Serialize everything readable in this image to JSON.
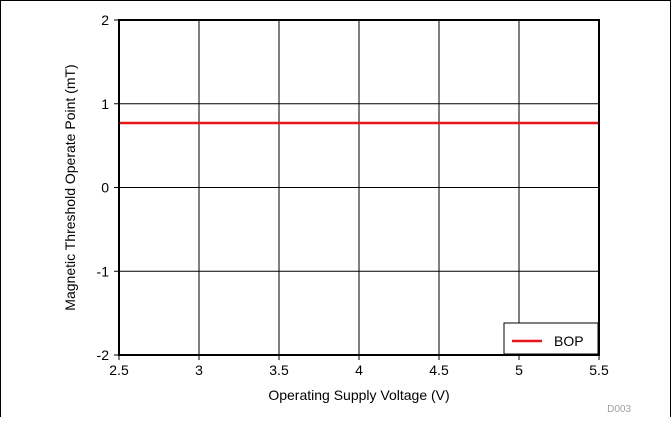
{
  "chart_data": {
    "type": "line",
    "title": "",
    "xlabel": "Operating Supply Voltage (V)",
    "ylabel": "Magnetic Threshold Operate Point (mT)",
    "xlim": [
      2.5,
      5.5
    ],
    "ylim": [
      -2,
      2
    ],
    "x_ticks": [
      2.5,
      3,
      3.5,
      4,
      4.5,
      5,
      5.5
    ],
    "x_tick_labels": [
      "2.5",
      "3",
      "3.5",
      "4",
      "4.5",
      "5",
      "5.5"
    ],
    "y_ticks": [
      -2,
      -1,
      0,
      1,
      2
    ],
    "y_tick_labels": [
      "-2",
      "-1",
      "0",
      "1",
      "2"
    ],
    "grid": true,
    "legend_position": "bottom-right",
    "series": [
      {
        "name": "BOP",
        "color": "#e8131b",
        "x": [
          2.5,
          3,
          3.5,
          4,
          4.5,
          5,
          5.5
        ],
        "y": [
          0.77,
          0.77,
          0.77,
          0.77,
          0.77,
          0.77,
          0.77
        ]
      }
    ],
    "annotations": [
      "D003"
    ]
  }
}
